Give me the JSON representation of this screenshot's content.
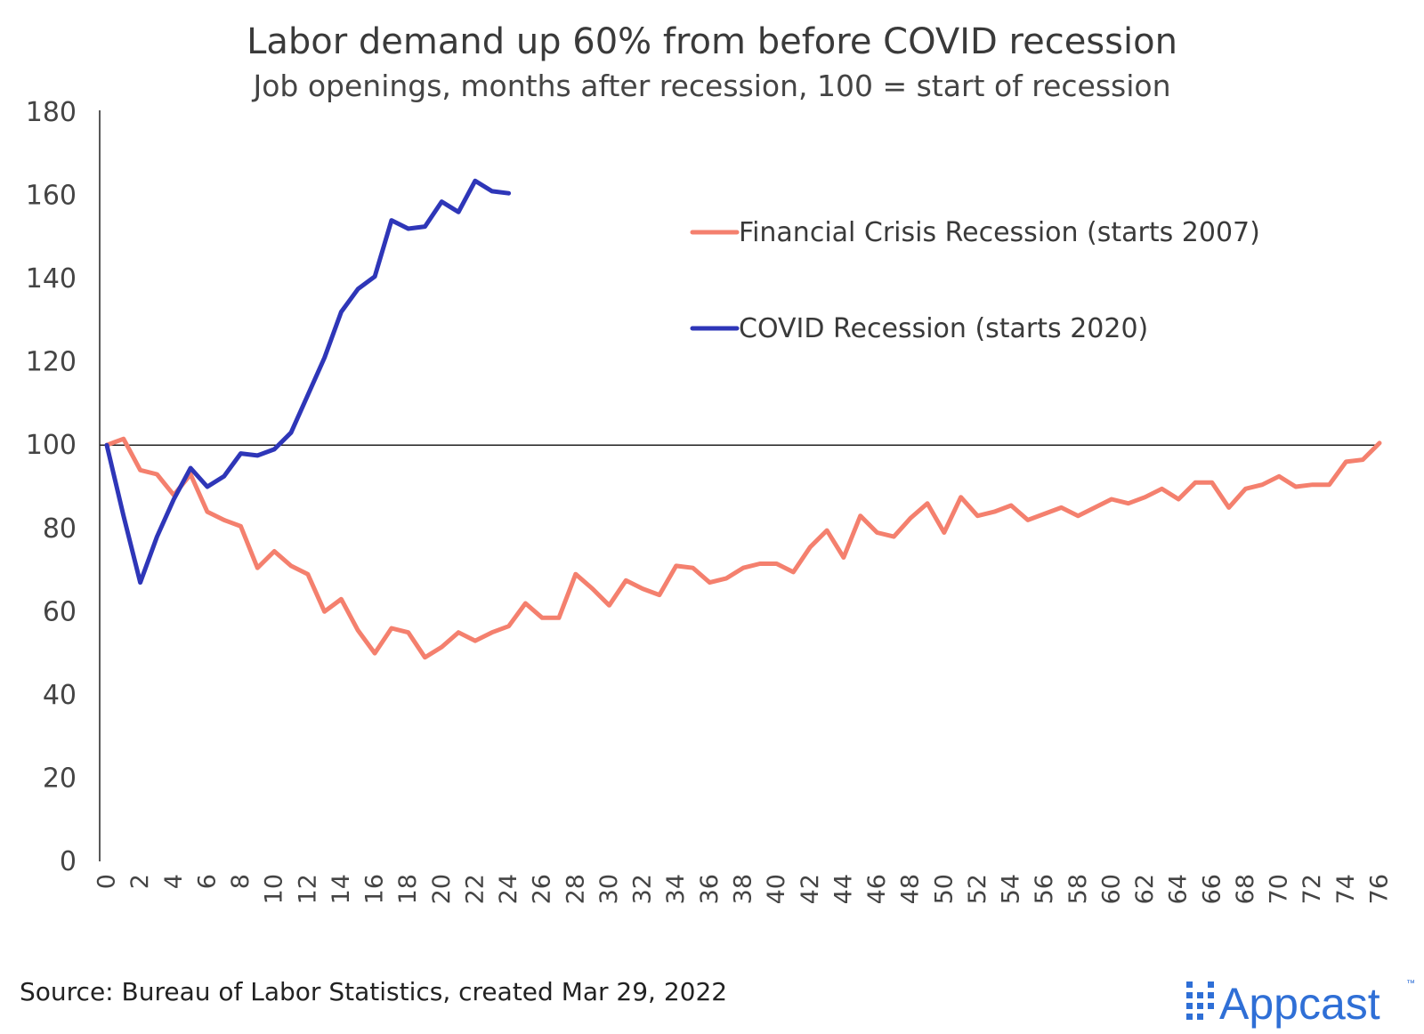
{
  "chart_data": {
    "type": "line",
    "title": "Labor demand up 60% from before COVID recession",
    "subtitle": "Job openings, months after recession, 100 = start of recession",
    "xlabel": "",
    "ylabel": "",
    "xlim": [
      0,
      76
    ],
    "ylim": [
      0,
      180
    ],
    "y_ticks": [
      0,
      20,
      40,
      60,
      80,
      100,
      120,
      140,
      160,
      180
    ],
    "x_ticks": [
      0,
      2,
      4,
      6,
      8,
      10,
      12,
      14,
      16,
      18,
      20,
      22,
      24,
      26,
      28,
      30,
      32,
      34,
      36,
      38,
      40,
      42,
      44,
      46,
      48,
      50,
      52,
      54,
      56,
      58,
      60,
      62,
      64,
      66,
      68,
      70,
      72,
      74,
      76
    ],
    "reference_line": 100,
    "grid": false,
    "legend_position": "top-right",
    "series": [
      {
        "name": "Financial Crisis Recession (starts 2007)",
        "color": "#f4806e",
        "x": [
          0,
          1,
          2,
          3,
          4,
          5,
          6,
          7,
          8,
          9,
          10,
          11,
          12,
          13,
          14,
          15,
          16,
          17,
          18,
          19,
          20,
          21,
          22,
          23,
          24,
          25,
          26,
          27,
          28,
          29,
          30,
          31,
          32,
          33,
          34,
          35,
          36,
          37,
          38,
          39,
          40,
          41,
          42,
          43,
          44,
          45,
          46,
          47,
          48,
          49,
          50,
          51,
          52,
          53,
          54,
          55,
          56,
          57,
          58,
          59,
          60,
          61,
          62,
          63,
          64,
          65,
          66,
          67,
          68,
          69,
          70,
          71,
          72,
          73,
          74,
          75,
          76
        ],
        "values": [
          100,
          101.5,
          94,
          93,
          88,
          93,
          84,
          82,
          80.5,
          70.5,
          74.5,
          71,
          69,
          60,
          63,
          55.5,
          50,
          56,
          55,
          49,
          51.5,
          55,
          53,
          55,
          56.5,
          62,
          58.5,
          58.5,
          69,
          65.5,
          61.5,
          67.5,
          65.5,
          64,
          71,
          70.5,
          67,
          68,
          70.5,
          71.5,
          71.5,
          69.5,
          75.5,
          79.5,
          73,
          83,
          79,
          78,
          82.5,
          86,
          79,
          87.5,
          83,
          84,
          85.5,
          82,
          83.5,
          85,
          83,
          85,
          87,
          86,
          87.5,
          89.5,
          87,
          91,
          91,
          85,
          89.5,
          90.5,
          92.5,
          90,
          90.5,
          90.5,
          96,
          96.5,
          100.5
        ]
      },
      {
        "name": "COVID Recession (starts 2020)",
        "color": "#2e36b8",
        "x": [
          0,
          1,
          2,
          3,
          4,
          5,
          6,
          7,
          8,
          9,
          10,
          11,
          12,
          13,
          14,
          15,
          16,
          17,
          18,
          19,
          20,
          21,
          22,
          23,
          24
        ],
        "values": [
          100,
          83,
          67,
          78,
          87,
          94.5,
          90,
          92.5,
          98,
          97.5,
          99,
          103,
          112,
          121,
          132,
          137.5,
          140.5,
          154,
          152,
          152.5,
          158.5,
          156,
          163.5,
          161,
          160.5
        ]
      }
    ]
  },
  "source": "Source: Bureau of Labor Statistics, created Mar 29, 2022",
  "brand": {
    "name": "Appcast",
    "trademark": "™",
    "color": "#2f6fd6"
  }
}
